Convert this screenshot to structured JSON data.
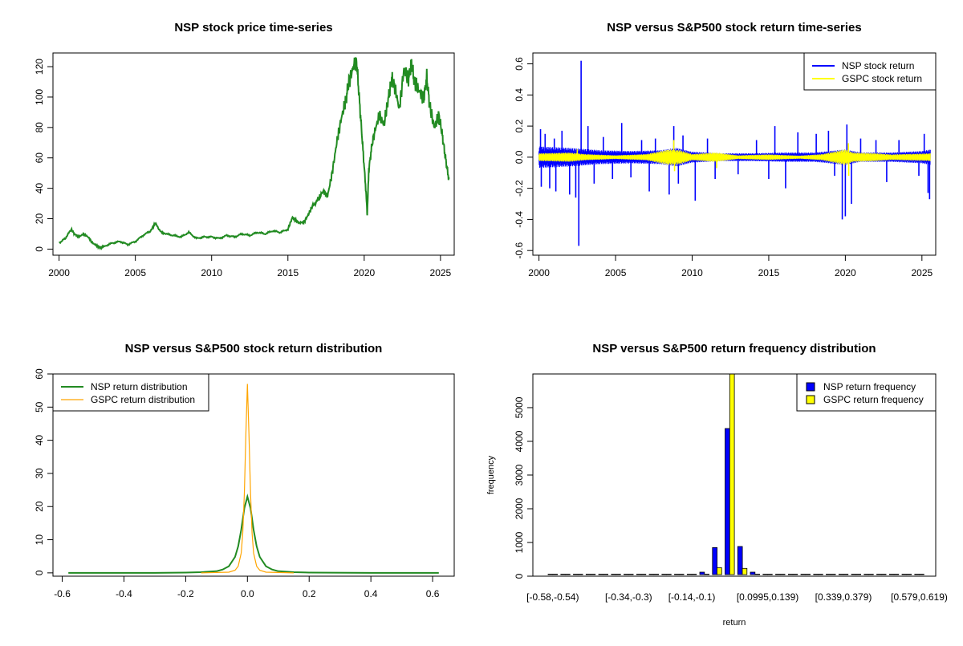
{
  "chart_data": [
    {
      "type": "line",
      "title": "NSP stock price time-series",
      "xlabel": "",
      "ylabel": "",
      "xlim": [
        1999.6,
        2025.9
      ],
      "ylim": [
        -4,
        129
      ],
      "grid": false,
      "x_ticks": [
        "2000",
        "2005",
        "2010",
        "2015",
        "2020",
        "2025"
      ],
      "y_ticks": [
        "0",
        "20",
        "40",
        "60",
        "80",
        "100",
        "120"
      ],
      "series": [
        {
          "color": "#228b22",
          "x": [
            2000.0,
            2000.4,
            2000.8,
            2001.0,
            2001.3,
            2001.6,
            2001.9,
            2002.2,
            2002.5,
            2002.7,
            2003.0,
            2003.5,
            2004.0,
            2004.5,
            2005.0,
            2005.5,
            2006.0,
            2006.3,
            2006.7,
            2007.0,
            2007.5,
            2008.0,
            2008.5,
            2009.0,
            2009.5,
            2010.0,
            2010.5,
            2011.0,
            2011.5,
            2012.0,
            2012.5,
            2013.0,
            2013.5,
            2014.0,
            2014.5,
            2015.0,
            2015.3,
            2015.6,
            2016.0,
            2016.3,
            2016.6,
            2017.0,
            2017.3,
            2017.6,
            2017.9,
            2018.2,
            2018.5,
            2018.8,
            2019.0,
            2019.3,
            2019.5,
            2019.7,
            2019.9,
            2020.1,
            2020.2,
            2020.3,
            2020.5,
            2020.7,
            2021.0,
            2021.3,
            2021.6,
            2021.8,
            2022.0,
            2022.3,
            2022.6,
            2022.9,
            2023.1,
            2023.3,
            2023.6,
            2023.9,
            2024.1,
            2024.3,
            2024.6,
            2024.9,
            2025.1,
            2025.3,
            2025.45,
            2025.55
          ],
          "values": [
            4,
            7,
            13,
            10,
            8,
            10,
            8,
            4,
            2,
            1,
            2,
            4,
            5,
            3,
            5,
            9,
            12,
            17,
            11,
            10,
            9,
            8,
            11,
            7,
            8,
            8,
            7,
            9,
            8,
            10,
            9,
            11,
            10,
            12,
            11,
            13,
            21,
            18,
            17,
            22,
            28,
            33,
            38,
            35,
            50,
            70,
            86,
            98,
            110,
            120,
            124,
            96,
            68,
            40,
            23,
            52,
            68,
            78,
            88,
            82,
            100,
            112,
            107,
            92,
            118,
            112,
            122,
            110,
            104,
            99,
            113,
            94,
            80,
            88,
            76,
            62,
            52,
            46
          ]
        }
      ]
    },
    {
      "type": "line",
      "title": "NSP versus S&P500 stock return time-series",
      "xlabel": "",
      "ylabel": "",
      "xlim": [
        1999.6,
        2025.9
      ],
      "ylim": [
        -0.63,
        0.67
      ],
      "grid": false,
      "legend_position": "top-right",
      "x_ticks": [
        "2000",
        "2005",
        "2010",
        "2015",
        "2020",
        "2025"
      ],
      "y_ticks": [
        "-0.6",
        "-0.4",
        "-0.2",
        "0.0",
        "0.2",
        "0.4",
        "0.6"
      ],
      "series": [
        {
          "name": "NSP stock return",
          "color": "#0000ff",
          "band": [
            [
              2000,
              0.07
            ],
            [
              2002,
              0.06
            ],
            [
              2004,
              0.045
            ],
            [
              2006,
              0.04
            ],
            [
              2008,
              0.045
            ],
            [
              2009,
              0.06
            ],
            [
              2010,
              0.035
            ],
            [
              2012,
              0.025
            ],
            [
              2014,
              0.025
            ],
            [
              2016,
              0.03
            ],
            [
              2018,
              0.03
            ],
            [
              2020,
              0.05
            ],
            [
              2021,
              0.03
            ],
            [
              2023,
              0.03
            ],
            [
              2025,
              0.04
            ],
            [
              2025.55,
              0.05
            ]
          ],
          "spikes": [
            [
              2000.1,
              0.18
            ],
            [
              2000.15,
              -0.19
            ],
            [
              2000.4,
              0.15
            ],
            [
              2000.7,
              -0.2
            ],
            [
              2001.0,
              0.12
            ],
            [
              2001.1,
              -0.22
            ],
            [
              2001.5,
              0.17
            ],
            [
              2002.0,
              -0.24
            ],
            [
              2002.4,
              -0.26
            ],
            [
              2002.6,
              -0.57
            ],
            [
              2002.75,
              0.62
            ],
            [
              2003.2,
              0.2
            ],
            [
              2003.6,
              -0.17
            ],
            [
              2004.2,
              0.13
            ],
            [
              2004.8,
              -0.14
            ],
            [
              2005.4,
              0.22
            ],
            [
              2006.0,
              -0.13
            ],
            [
              2006.7,
              0.11
            ],
            [
              2007.2,
              -0.22
            ],
            [
              2007.6,
              0.12
            ],
            [
              2008.5,
              -0.24
            ],
            [
              2008.8,
              0.2
            ],
            [
              2009.1,
              -0.17
            ],
            [
              2009.4,
              0.14
            ],
            [
              2010.2,
              -0.28
            ],
            [
              2011.0,
              0.12
            ],
            [
              2011.5,
              -0.14
            ],
            [
              2013.0,
              -0.11
            ],
            [
              2014.2,
              0.11
            ],
            [
              2015.0,
              -0.14
            ],
            [
              2015.4,
              0.2
            ],
            [
              2016.1,
              -0.2
            ],
            [
              2016.9,
              0.16
            ],
            [
              2018.1,
              0.15
            ],
            [
              2018.9,
              0.17
            ],
            [
              2019.3,
              -0.12
            ],
            [
              2019.8,
              -0.4
            ],
            [
              2020.0,
              -0.38
            ],
            [
              2020.1,
              0.21
            ],
            [
              2020.4,
              -0.3
            ],
            [
              2021.0,
              0.12
            ],
            [
              2022.0,
              0.11
            ],
            [
              2022.7,
              -0.16
            ],
            [
              2023.5,
              0.11
            ],
            [
              2024.8,
              -0.12
            ],
            [
              2025.15,
              0.15
            ],
            [
              2025.4,
              -0.23
            ],
            [
              2025.5,
              -0.27
            ]
          ]
        },
        {
          "name": "GSPC stock return",
          "color": "#ffff00",
          "band": [
            [
              2000,
              0.025
            ],
            [
              2002,
              0.03
            ],
            [
              2003,
              0.02
            ],
            [
              2005,
              0.012
            ],
            [
              2007,
              0.02
            ],
            [
              2008.5,
              0.05
            ],
            [
              2009.2,
              0.045
            ],
            [
              2010,
              0.02
            ],
            [
              2011.5,
              0.03
            ],
            [
              2013,
              0.012
            ],
            [
              2015,
              0.018
            ],
            [
              2017,
              0.01
            ],
            [
              2018.5,
              0.02
            ],
            [
              2020,
              0.05
            ],
            [
              2020.5,
              0.03
            ],
            [
              2022,
              0.025
            ],
            [
              2023,
              0.018
            ],
            [
              2025.55,
              0.025
            ]
          ],
          "spikes": [
            [
              2008.8,
              0.11
            ],
            [
              2008.85,
              -0.09
            ],
            [
              2020.2,
              0.09
            ],
            [
              2020.22,
              -0.12
            ],
            [
              2002.5,
              0.05
            ],
            [
              2011.6,
              -0.07
            ]
          ]
        }
      ]
    },
    {
      "type": "line",
      "title": "NSP versus S&P500 stock return distribution",
      "xlabel": "",
      "ylabel": "",
      "xlim": [
        -0.63,
        0.67
      ],
      "ylim": [
        -1,
        60
      ],
      "grid": false,
      "legend_position": "top-left",
      "x_ticks": [
        "-0.6",
        "-0.4",
        "-0.2",
        "0.0",
        "0.2",
        "0.4",
        "0.6"
      ],
      "y_ticks": [
        "0",
        "10",
        "20",
        "30",
        "40",
        "50",
        "60"
      ],
      "series": [
        {
          "name": "NSP return distribution",
          "color": "#228b22",
          "x": [
            -0.58,
            -0.3,
            -0.2,
            -0.15,
            -0.1,
            -0.08,
            -0.06,
            -0.04,
            -0.03,
            -0.02,
            -0.01,
            0.0,
            0.01,
            0.02,
            0.03,
            0.04,
            0.06,
            0.08,
            0.1,
            0.15,
            0.2,
            0.4,
            0.62
          ],
          "values": [
            0,
            0,
            0.1,
            0.2,
            0.5,
            1.0,
            2.0,
            4.8,
            8.0,
            13.0,
            19.5,
            23.0,
            19.5,
            13.0,
            8.0,
            4.8,
            2.0,
            1.0,
            0.5,
            0.2,
            0.1,
            0,
            0
          ]
        },
        {
          "name": "GSPC return distribution",
          "color": "#ffa500",
          "x": [
            -0.15,
            -0.06,
            -0.04,
            -0.03,
            -0.02,
            -0.015,
            -0.01,
            -0.005,
            0.0,
            0.005,
            0.01,
            0.015,
            0.02,
            0.03,
            0.04,
            0.06,
            0.15
          ],
          "values": [
            0,
            0.2,
            0.8,
            2.0,
            6.0,
            12.0,
            24.0,
            42.0,
            57.0,
            42.0,
            24.0,
            12.0,
            6.0,
            2.0,
            0.8,
            0.2,
            0
          ]
        }
      ]
    },
    {
      "type": "bar",
      "title": "NSP versus S&P500 return frequency distribution",
      "xlabel": "return",
      "ylabel": "frequency",
      "ylim": [
        0,
        5999
      ],
      "grid": false,
      "legend_position": "top-right",
      "y_ticks": [
        "0",
        "1000",
        "2000",
        "3000",
        "4000",
        "5000"
      ],
      "categories": [
        "[-0.58,-0.54)",
        "[-0.54,-0.5)",
        "[-0.5,-0.46)",
        "[-0.46,-0.42)",
        "[-0.42,-0.38)",
        "[-0.38,-0.34)",
        "[-0.34,-0.3)",
        "[-0.3,-0.26)",
        "[-0.26,-0.22)",
        "[-0.22,-0.18)",
        "[-0.18,-0.14)",
        "[-0.14,-0.1)",
        "[-0.1,-0.06)",
        "[-0.06,-0.02)",
        "[-0.02,0.02)",
        "[0.02,0.06)",
        "[0.06,0.0995)",
        "[0.0995,0.139)",
        "[0.139,0.179)",
        "[0.179,0.219)",
        "[0.219,0.259)",
        "[0.259,0.299)",
        "[0.299,0.339)",
        "[0.339,0.379)",
        "[0.379,0.419)",
        "[0.419,0.459)",
        "[0.459,0.499)",
        "[0.499,0.539)",
        "[0.539,0.579)",
        "[0.579,0.619)"
      ],
      "shown_category_labels": [
        "[-0.58,-0.54)",
        "[-0.34,-0.3)",
        "[-0.14,-0.1)",
        "[0.0995,0.139)",
        "[0.339,0.379)",
        "[0.579,0.619)"
      ],
      "series": [
        {
          "name": "NSP return frequency",
          "color": "#0000ff",
          "values": [
            1,
            0,
            0,
            0,
            0,
            0,
            0,
            1,
            2,
            4,
            8,
            20,
            120,
            850,
            4380,
            880,
            120,
            40,
            12,
            6,
            2,
            1,
            0,
            0,
            0,
            0,
            0,
            0,
            0,
            1
          ]
        },
        {
          "name": "GSPC return frequency",
          "color": "#ffff00",
          "values": [
            0,
            0,
            0,
            0,
            0,
            0,
            0,
            0,
            0,
            0,
            0,
            0,
            12,
            250,
            6000,
            230,
            10,
            0,
            0,
            0,
            0,
            0,
            0,
            0,
            0,
            0,
            0,
            0,
            0,
            0
          ]
        }
      ]
    }
  ]
}
